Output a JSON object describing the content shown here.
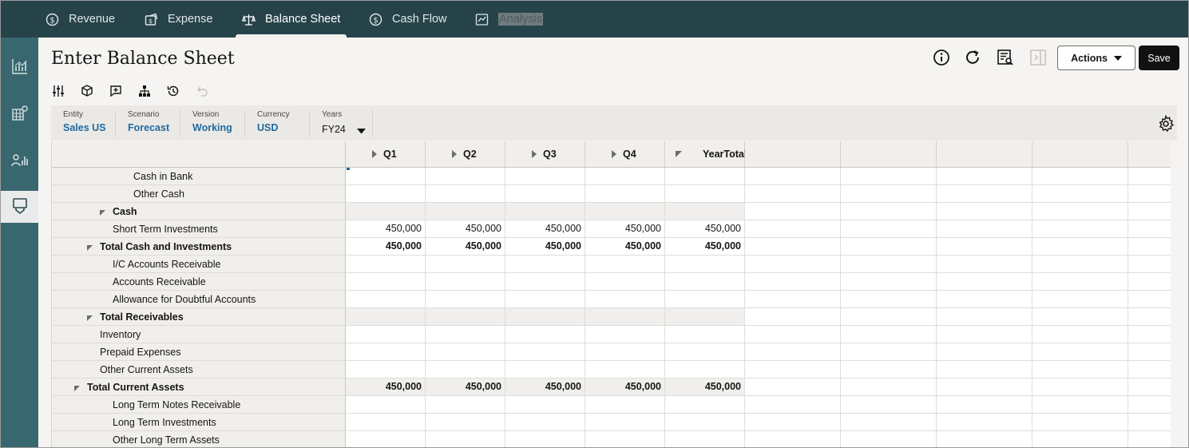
{
  "nav": {
    "tabs": [
      {
        "label": "Revenue",
        "icon": "dollar-circle-icon"
      },
      {
        "label": "Expense",
        "icon": "expense-icon"
      },
      {
        "label": "Balance Sheet",
        "icon": "scale-icon"
      },
      {
        "label": "Cash Flow",
        "icon": "dollar-circle-icon"
      },
      {
        "label": "Analysis",
        "icon": "report-icon"
      }
    ],
    "active": "Balance Sheet"
  },
  "rail": {
    "items": [
      "chart-icon",
      "grid-gear-icon",
      "people-chart-icon",
      "form-icon"
    ],
    "active": 3
  },
  "header": {
    "title": "Enter Balance Sheet",
    "actions_label": "Actions",
    "save_label": "Save"
  },
  "toolbar": [
    "sliders-icon",
    "cube-icon",
    "add-comment-icon",
    "hierarchy-icon",
    "history-icon",
    "undo-icon"
  ],
  "pov": [
    {
      "label": "Entity",
      "value": "Sales US"
    },
    {
      "label": "Scenario",
      "value": "Forecast"
    },
    {
      "label": "Version",
      "value": "Working"
    },
    {
      "label": "Currency",
      "value": "USD"
    },
    {
      "label": "Years",
      "value": "FY24"
    }
  ],
  "grid": {
    "columns": [
      "Q1",
      "Q2",
      "Q3",
      "Q4",
      "YearTotal"
    ],
    "rows": [
      {
        "label": "Cash in Bank",
        "indent": 3,
        "values": [
          "",
          "",
          "",
          "",
          ""
        ],
        "bold": false,
        "sub": false
      },
      {
        "label": "Other Cash",
        "indent": 3,
        "values": [
          "",
          "",
          "",
          "",
          ""
        ],
        "bold": false,
        "sub": false
      },
      {
        "label": "Cash",
        "indent": 2,
        "values": [
          "",
          "",
          "",
          "",
          ""
        ],
        "bold": true,
        "sub": true,
        "collapse": true
      },
      {
        "label": "Short Term Investments",
        "indent": 2,
        "values": [
          "450,000",
          "450,000",
          "450,000",
          "450,000",
          "450,000"
        ],
        "bold": false,
        "sub": false
      },
      {
        "label": "Total Cash and Investments",
        "indent": 1,
        "values": [
          "450,000",
          "450,000",
          "450,000",
          "450,000",
          "450,000"
        ],
        "bold": true,
        "sub": false,
        "collapse": true
      },
      {
        "label": "I/C Accounts Receivable",
        "indent": 2,
        "values": [
          "",
          "",
          "",
          "",
          ""
        ],
        "bold": false,
        "sub": false
      },
      {
        "label": "Accounts Receivable",
        "indent": 2,
        "values": [
          "",
          "",
          "",
          "",
          ""
        ],
        "bold": false,
        "sub": false
      },
      {
        "label": "Allowance for Doubtful Accounts",
        "indent": 2,
        "values": [
          "",
          "",
          "",
          "",
          ""
        ],
        "bold": false,
        "sub": false
      },
      {
        "label": "Total Receivables",
        "indent": 1,
        "values": [
          "",
          "",
          "",
          "",
          ""
        ],
        "bold": true,
        "sub": true,
        "collapse": true
      },
      {
        "label": "Inventory",
        "indent": 1,
        "values": [
          "",
          "",
          "",
          "",
          ""
        ],
        "bold": false,
        "sub": false
      },
      {
        "label": "Prepaid Expenses",
        "indent": 1,
        "values": [
          "",
          "",
          "",
          "",
          ""
        ],
        "bold": false,
        "sub": false
      },
      {
        "label": "Other Current Assets",
        "indent": 1,
        "values": [
          "",
          "",
          "",
          "",
          ""
        ],
        "bold": false,
        "sub": false
      },
      {
        "label": "Total Current Assets",
        "indent": 0,
        "values": [
          "450,000",
          "450,000",
          "450,000",
          "450,000",
          "450,000"
        ],
        "bold": true,
        "sub": true,
        "collapse": true
      },
      {
        "label": "Long Term Notes Receivable",
        "indent": 2,
        "values": [
          "",
          "",
          "",
          "",
          ""
        ],
        "bold": false,
        "sub": false
      },
      {
        "label": "Long Term Investments",
        "indent": 2,
        "values": [
          "",
          "",
          "",
          "",
          ""
        ],
        "bold": false,
        "sub": false
      },
      {
        "label": "Other Long Term Assets",
        "indent": 2,
        "values": [
          "",
          "",
          "",
          "",
          ""
        ],
        "bold": false,
        "sub": false
      }
    ]
  }
}
